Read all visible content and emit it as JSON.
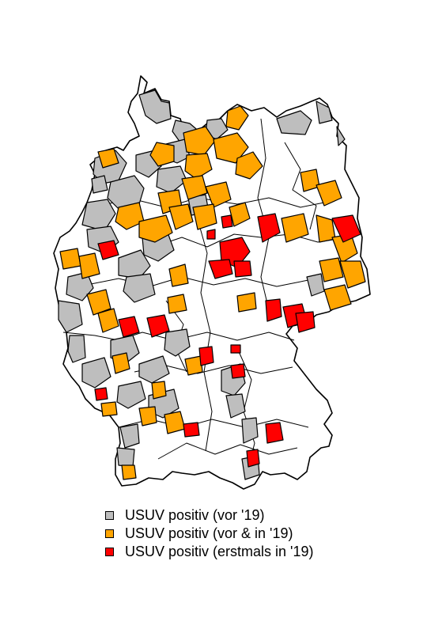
{
  "map": {
    "region": "Germany districts",
    "outline_color": "#000000",
    "land_fill": "#ffffff"
  },
  "legend": {
    "items": [
      {
        "label": "USUV positiv (vor '19)",
        "color": "#bebebe"
      },
      {
        "label": "USUV positiv (vor & in '19)",
        "color": "#ffa500"
      },
      {
        "label": "USUV positiv (erstmals in '19)",
        "color": "#ff0000"
      }
    ]
  }
}
